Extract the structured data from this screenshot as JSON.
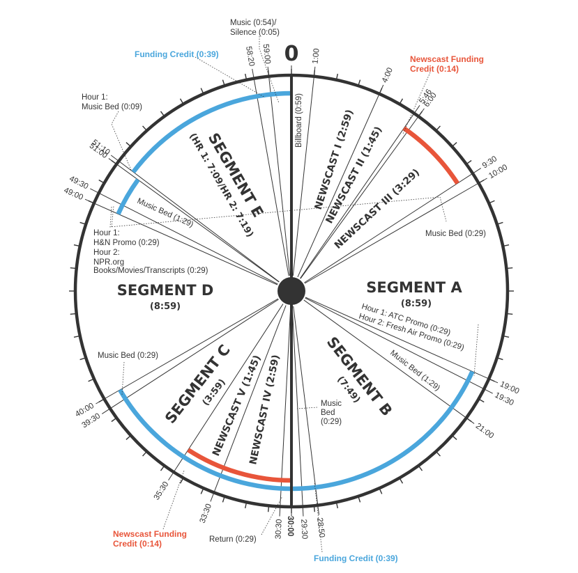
{
  "top_label": "0",
  "bottom_label": "30:00",
  "colors": {
    "ink": "#333333",
    "funding_blue": "#4aa6dc",
    "newscast_red": "#e8553a"
  },
  "boundaries": [
    {
      "min": 0,
      "text": ""
    },
    {
      "min": 1.0,
      "text": "1:00"
    },
    {
      "min": 4.0,
      "text": "4:00"
    },
    {
      "min": 5.767,
      "text": "5:46"
    },
    {
      "min": 6.0,
      "text": "6:00"
    },
    {
      "min": 9.5,
      "text": "9:30"
    },
    {
      "min": 10.0,
      "text": "10:00"
    },
    {
      "min": 19.0,
      "text": "19:00"
    },
    {
      "min": 19.5,
      "text": "19:30"
    },
    {
      "min": 21.0,
      "text": "21:00"
    },
    {
      "min": 28.833,
      "text": "28:50"
    },
    {
      "min": 29.5,
      "text": "29:30"
    },
    {
      "min": 30.0,
      "text": ""
    },
    {
      "min": 30.5,
      "text": "30:30"
    },
    {
      "min": 33.5,
      "text": "33:30"
    },
    {
      "min": 35.5,
      "text": "35:30"
    },
    {
      "min": 39.5,
      "text": "39:30"
    },
    {
      "min": 40.0,
      "text": "40:00"
    },
    {
      "min": 49.0,
      "text": "49:00"
    },
    {
      "min": 49.5,
      "text": "49:30"
    },
    {
      "min": 51.0,
      "text": "51:00"
    },
    {
      "min": 51.167,
      "text": "51:10"
    },
    {
      "min": 58.333,
      "text": "58:20"
    },
    {
      "min": 59.0,
      "text": "59:00"
    }
  ],
  "arcs": [
    {
      "name": "funding-credit-top-arc",
      "color": "funding_blue",
      "from": 51.167,
      "to": 60,
      "level": 1
    },
    {
      "name": "funding-credit-top-inner-arc",
      "color": "funding_blue",
      "from": 49.0,
      "to": 51.0,
      "level": 2
    },
    {
      "name": "newscast-funding-credit-top-arc",
      "color": "newscast_red",
      "from": 5.767,
      "to": 9.5,
      "level": 1
    },
    {
      "name": "funding-credit-bottom-arc",
      "color": "funding_blue",
      "from": 19.0,
      "to": 40.0,
      "level": 1
    },
    {
      "name": "newscast-funding-credit-bottom-arc",
      "color": "newscast_red",
      "from": 30.0,
      "to": 35.5,
      "level": 2
    }
  ],
  "segments": {
    "a": {
      "name": "SEGMENT A",
      "dur": "(8:59)"
    },
    "b": {
      "name": "SEGMENT B",
      "dur": "(7:49)"
    },
    "c": {
      "name": "SEGMENT C",
      "dur": "(3:59)"
    },
    "d": {
      "name": "SEGMENT D",
      "dur": "(8:59)"
    },
    "e": {
      "name": "SEGMENT E",
      "dur": "(HR 1: 7:09/HR 2: 7:19)"
    }
  },
  "radial_labels": {
    "billboard": "Billboard (0:59)",
    "newscast1": "NEWSCAST I (2:59)",
    "newscast2": "NEWSCAST II (1:45)",
    "newscast3": "NEWSCAST III (3:29)",
    "newscast4": "NEWSCAST IV (2:59)",
    "newscast5": "NEWSCAST V (1:45)",
    "music_bed_e": "Music Bed (1:29)",
    "music_bed_a": "Music Bed (1:29)"
  },
  "callouts": {
    "music_silence_1": "Music (0:54)/",
    "music_silence_2": "Silence (0:05)",
    "funding_credit_top": "Funding Credit (0:39)",
    "newscast_funding_top_1": "Newscast Funding",
    "newscast_funding_top_2": "Credit (0:14)",
    "hour1_musicbed_1": "Hour 1:",
    "hour1_musicbed_2": "Music Bed (0:09)",
    "music_bed_029_a": "Music Bed (0:29)",
    "hour1_hn_1": "Hour 1:",
    "hour1_hn_2": "H&N Promo (0:29)",
    "hour1_hn_3": "Hour 2:",
    "hour1_hn_4": "NPR.org",
    "hour1_hn_5": "Books/Movies/Transcripts (0:29)",
    "atc_promo_1": "Hour 1: ATC Promo (0:29)",
    "atc_promo_2": "Hour 2: Fresh Air Promo (0:29)",
    "music_bed_029_d": "Music Bed (0:29)",
    "music_bed_b_1": "Music",
    "music_bed_b_2": "Bed",
    "music_bed_b_3": "(0:29)",
    "newscast_funding_bottom_1": "Newscast Funding",
    "newscast_funding_bottom_2": "Credit (0:14)",
    "return": "Return (0:29)",
    "funding_credit_bottom": "Funding Credit (0:39)"
  }
}
